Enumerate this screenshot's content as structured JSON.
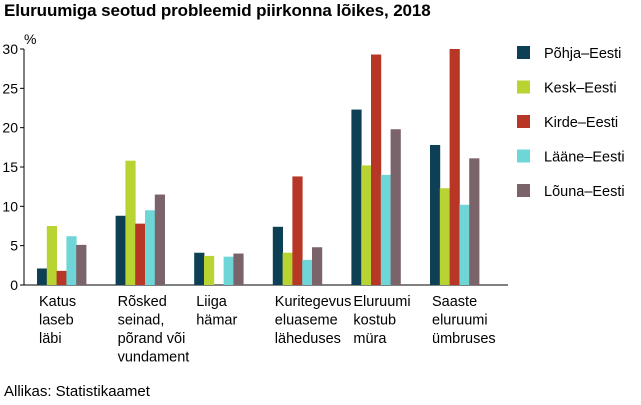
{
  "title": "Eluruumiga seotud probleemid piirkonna lõikes, 2018",
  "source": "Allikas: Statistikaamet",
  "chart_data": {
    "type": "bar",
    "title": "Eluruumiga seotud probleemid piirkonna lõikes, 2018",
    "ylabel": "%",
    "xlabel": "",
    "ylim": [
      0,
      30
    ],
    "yticks": [
      0,
      5,
      10,
      15,
      20,
      25,
      30
    ],
    "grid": false,
    "legend_position": "right",
    "categories": [
      [
        "Katus",
        "laseb",
        "läbi"
      ],
      [
        "Rõsked",
        "seinad,",
        "põrand või",
        "vundament"
      ],
      [
        "Liiga",
        "hämar"
      ],
      [
        "Kuritegevus",
        "eluaseme",
        "läheduses"
      ],
      [
        "Eluruumi",
        "kostub",
        "müra"
      ],
      [
        "Saaste",
        "eluruumi",
        "ümbruses"
      ]
    ],
    "series": [
      {
        "name": "Põhja–Eesti",
        "color": "#0d3f55",
        "values": [
          2.1,
          8.8,
          4.1,
          7.4,
          22.3,
          17.8
        ]
      },
      {
        "name": "Kesk–Eesti",
        "color": "#b8d432",
        "values": [
          7.5,
          15.8,
          3.7,
          4.1,
          15.2,
          12.3
        ]
      },
      {
        "name": "Kirde–Eesti",
        "color": "#b73625",
        "values": [
          1.8,
          7.8,
          0,
          13.8,
          29.3,
          30.0
        ]
      },
      {
        "name": "Lääne–Eesti",
        "color": "#6fd6d8",
        "values": [
          6.2,
          9.5,
          3.6,
          3.2,
          14.0,
          10.2
        ]
      },
      {
        "name": "Lõuna–Eesti",
        "color": "#7b636a",
        "values": [
          5.1,
          11.5,
          4.0,
          4.8,
          19.8,
          16.1
        ]
      }
    ]
  }
}
